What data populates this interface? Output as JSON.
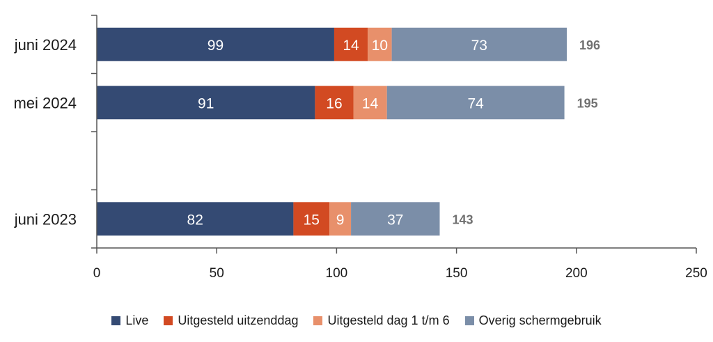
{
  "chart_data": {
    "type": "bar",
    "orientation": "horizontal",
    "stacked": true,
    "categories": [
      "juni 2024",
      "mei 2024",
      "",
      "juni 2023"
    ],
    "series": [
      {
        "name": "Live",
        "color": "#344a73",
        "values": [
          99,
          91,
          null,
          82
        ]
      },
      {
        "name": "Uitgesteld uitzenddag",
        "color": "#d24a22",
        "values": [
          14,
          16,
          null,
          15
        ]
      },
      {
        "name": "Uitgesteld dag 1 t/m 6",
        "color": "#e8906b",
        "values": [
          10,
          14,
          null,
          9
        ]
      },
      {
        "name": "Overig schermgebruik",
        "color": "#7b8ea8",
        "values": [
          73,
          74,
          null,
          37
        ]
      }
    ],
    "totals": [
      "196",
      "195",
      "",
      "143"
    ],
    "xlim": [
      0,
      250
    ],
    "xticks": [
      "0",
      "50",
      "100",
      "150",
      "200",
      "250"
    ],
    "grid": false,
    "legend_position": "bottom"
  }
}
